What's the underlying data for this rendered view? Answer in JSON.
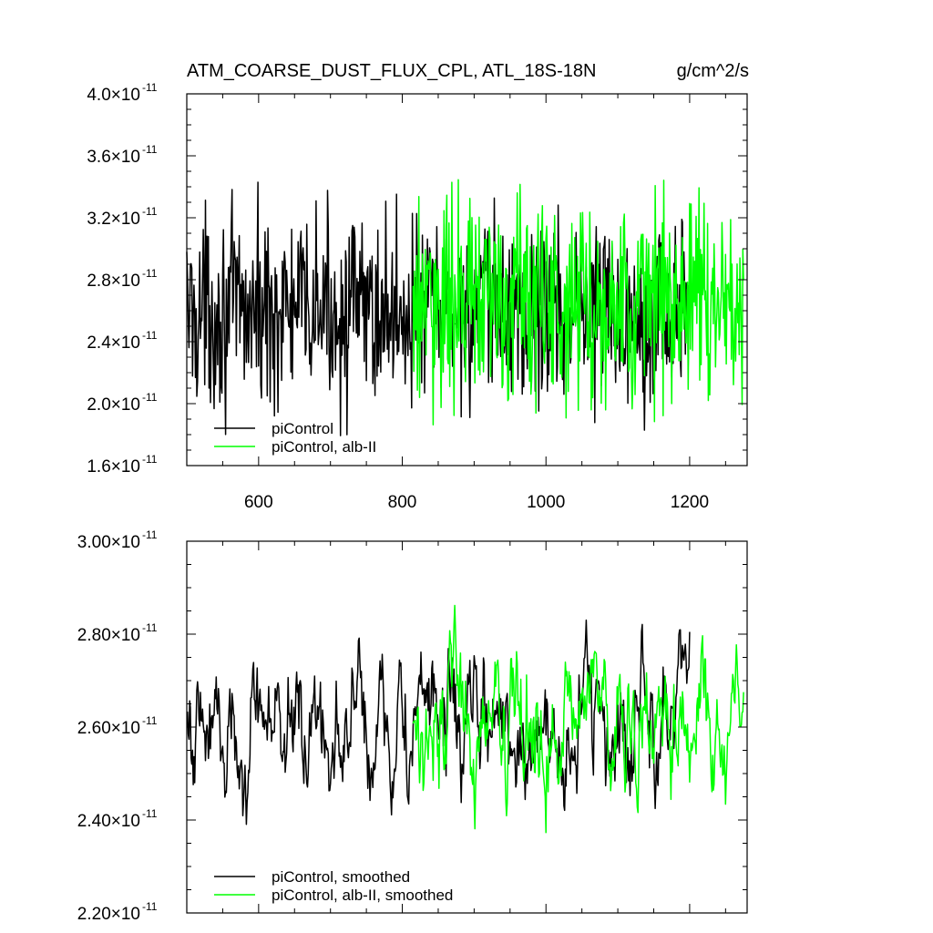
{
  "chart_data": [
    {
      "type": "line",
      "title": "ATM_COARSE_DUST_FLUX_CPL, ATL_18S-18N",
      "units": "g/cm^2/s",
      "xlim": [
        500,
        1280
      ],
      "ylim": [
        1.6e-11,
        4e-11
      ],
      "x_ticks": [
        "600",
        "800",
        "1000",
        "1200"
      ],
      "y_ticks": [
        {
          "mant": "4.0",
          "exp": "-11"
        },
        {
          "mant": "3.6",
          "exp": "-11"
        },
        {
          "mant": "3.2",
          "exp": "-11"
        },
        {
          "mant": "2.8",
          "exp": "-11"
        },
        {
          "mant": "2.4",
          "exp": "-11"
        },
        {
          "mant": "2.0",
          "exp": "-11"
        },
        {
          "mant": "1.6",
          "exp": "-11"
        }
      ],
      "legend_position": "bottom-left",
      "series": [
        {
          "name": "piControl",
          "color": "#000000",
          "x_range": [
            500,
            1200
          ],
          "mean": 2.6e-11,
          "amplitude": 3e-12
        },
        {
          "name": "piControl, alb-II",
          "color": "#00ff00",
          "x_range": [
            815,
            1275
          ],
          "mean": 2.65e-11,
          "amplitude": 3.3e-12
        }
      ]
    },
    {
      "type": "line",
      "xlim": [
        500,
        1280
      ],
      "ylim": [
        2.2e-11,
        3e-11
      ],
      "y_ticks": [
        {
          "mant": "3.00",
          "exp": "-11"
        },
        {
          "mant": "2.80",
          "exp": "-11"
        },
        {
          "mant": "2.60",
          "exp": "-11"
        },
        {
          "mant": "2.40",
          "exp": "-11"
        },
        {
          "mant": "2.20",
          "exp": "-11"
        }
      ],
      "legend_position": "bottom-left",
      "series": [
        {
          "name": "piControl, smoothed",
          "color": "#000000",
          "x_range": [
            500,
            1200
          ],
          "mean": 2.6e-11,
          "amplitude": 1.2e-12
        },
        {
          "name": "piControl, alb-II, smoothed",
          "color": "#00ff00",
          "x_range": [
            815,
            1275
          ],
          "mean": 2.62e-11,
          "amplitude": 1.2e-12
        }
      ]
    }
  ]
}
